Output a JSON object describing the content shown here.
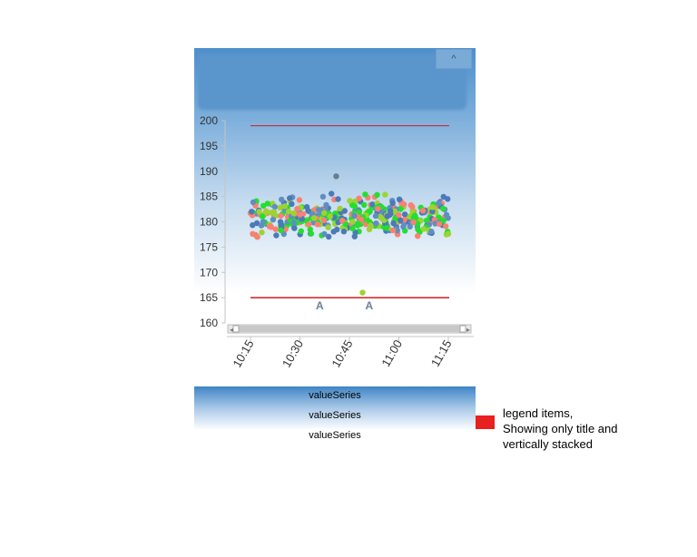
{
  "collapse_button_label": "^",
  "chart_data": {
    "type": "scatter",
    "yticks": [
      200,
      195,
      190,
      185,
      180,
      175,
      170,
      165,
      160
    ],
    "ylim": [
      160,
      200
    ],
    "xticks": [
      "10:15",
      "10:30",
      "10:45",
      "11:00",
      "11:15"
    ],
    "xlim_minutes": [
      615,
      675
    ],
    "reference_lines": [
      199,
      165
    ],
    "reference_line_color": "#cc1f1f",
    "markers": [
      {
        "label": "A",
        "time_minutes": 636
      },
      {
        "label": "A",
        "time_minutes": 651
      }
    ],
    "outliers": [
      {
        "time_minutes": 641,
        "y": 189,
        "color": "#6b7b8c"
      },
      {
        "time_minutes": 649,
        "y": 166,
        "color": "#9bd432"
      }
    ],
    "series_colors": [
      "#4a7ab8",
      "#fa8072",
      "#22e02c",
      "#9bd432",
      "#5f8fc0"
    ],
    "points_center": 181,
    "points_spread": 4,
    "point_count": 420
  },
  "legend": {
    "items": [
      "valueSeries",
      "valueSeries",
      "valueSeries"
    ]
  },
  "annotation": {
    "lines": [
      "legend items,",
      "Showing only title and",
      "vertically stacked"
    ]
  },
  "arrow_color": "#e8201f"
}
